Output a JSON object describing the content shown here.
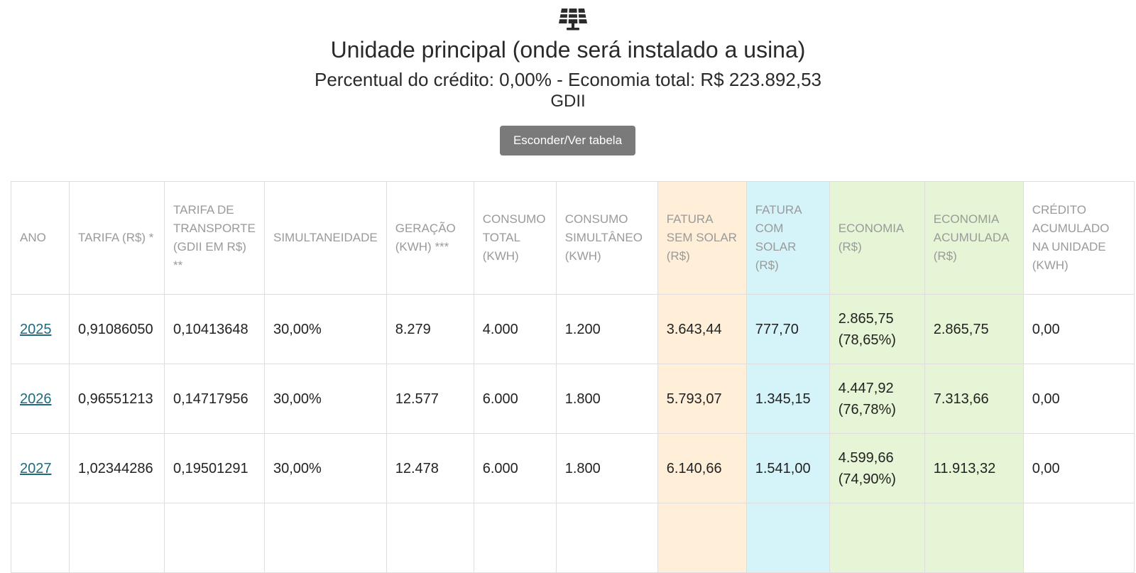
{
  "header": {
    "icon": "solar-panel-icon",
    "title": "Unidade principal (onde será instalado a usina)",
    "subtitle": "Percentual do crédito: 0,00% - Economia total: R$ 223.892,53",
    "modality": "GDII",
    "toggle_label": "Esconder/Ver tabela"
  },
  "colors": {
    "orange_col": "#ffefd9",
    "cyan_col": "#d5f4fa",
    "green_col": "#e6f5d5",
    "year_link": "#1d6b80",
    "button_bg": "#7a7a7a"
  },
  "table": {
    "headers": [
      "ANO",
      "TARIFA (R$) *",
      "TARIFA DE TRANSPORTE (GDII EM R$) **",
      "SIMULTANEIDADE",
      "GERAÇÃO (KWH) ***",
      "CONSUMO TOTAL (KWH)",
      "CONSUMO SIMULTÂNEO (KWH)",
      "FATURA SEM SOLAR (R$)",
      "FATURA COM SOLAR (R$)",
      "ECONOMIA (R$)",
      "ECONOMIA ACUMULADA (R$)",
      "CRÉDITO ACUMULADO NA UNIDADE (KWH)"
    ],
    "rows": [
      {
        "ano": "2025",
        "tarifa": "0,91086050",
        "transporte": "0,10413648",
        "simultaneidade": "30,00%",
        "geracao": "8.279",
        "consumo_total": "4.000",
        "consumo_simultaneo": "1.200",
        "fatura_sem": "3.643,44",
        "fatura_com": "777,70",
        "economia": "2.865,75",
        "economia_pct": "(78,65%)",
        "economia_acum": "2.865,75",
        "credito": "0,00"
      },
      {
        "ano": "2026",
        "tarifa": "0,96551213",
        "transporte": "0,14717956",
        "simultaneidade": "30,00%",
        "geracao": "12.577",
        "consumo_total": "6.000",
        "consumo_simultaneo": "1.800",
        "fatura_sem": "5.793,07",
        "fatura_com": "1.345,15",
        "economia": "4.447,92",
        "economia_pct": "(76,78%)",
        "economia_acum": "7.313,66",
        "credito": "0,00"
      },
      {
        "ano": "2027",
        "tarifa": "1,02344286",
        "transporte": "0,19501291",
        "simultaneidade": "30,00%",
        "geracao": "12.478",
        "consumo_total": "6.000",
        "consumo_simultaneo": "1.800",
        "fatura_sem": "6.140,66",
        "fatura_com": "1.541,00",
        "economia": "4.599,66",
        "economia_pct": "(74,90%)",
        "economia_acum": "11.913,32",
        "credito": "0,00"
      }
    ]
  }
}
